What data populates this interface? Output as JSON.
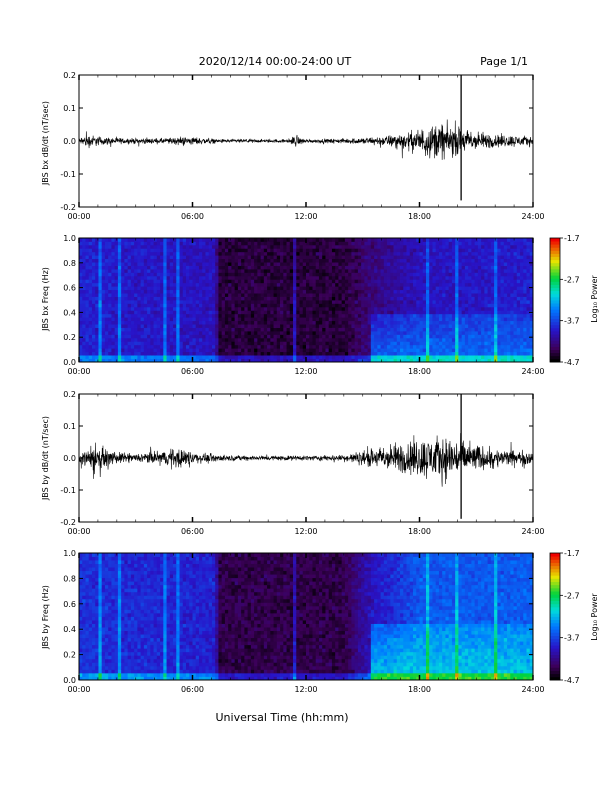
{
  "header": {
    "title": "2020/12/14  00:00-24:00 UT",
    "page": "Page 1/1"
  },
  "xaxis_label": "Universal Time (hh:mm)",
  "chart_data": [
    {
      "type": "line",
      "ylabel": "JBS bx dB/dt (nT/sec)",
      "xlim": [
        0,
        24
      ],
      "ylim": [
        -0.2,
        0.2
      ],
      "xticks": [
        "00:00",
        "06:00",
        "12:00",
        "18:00",
        "24:00"
      ],
      "yticks": [
        "-0.2",
        "-0.1",
        "0.0",
        "0.1",
        "0.2"
      ],
      "envelope": [
        {
          "t": 0,
          "amp": 0.012
        },
        {
          "t": 0.4,
          "amp": 0.03
        },
        {
          "t": 1.2,
          "amp": 0.018
        },
        {
          "t": 2.5,
          "amp": 0.012
        },
        {
          "t": 4.5,
          "amp": 0.012
        },
        {
          "t": 5.5,
          "amp": 0.02
        },
        {
          "t": 7.5,
          "amp": 0.008
        },
        {
          "t": 11,
          "amp": 0.007
        },
        {
          "t": 11.4,
          "amp": 0.025
        },
        {
          "t": 12,
          "amp": 0.008
        },
        {
          "t": 14,
          "amp": 0.01
        },
        {
          "t": 16,
          "amp": 0.02
        },
        {
          "t": 17.5,
          "amp": 0.04
        },
        {
          "t": 19,
          "amp": 0.08
        },
        {
          "t": 20,
          "amp": 0.06
        },
        {
          "t": 21,
          "amp": 0.04
        },
        {
          "t": 22,
          "amp": 0.03
        },
        {
          "t": 24,
          "amp": 0.02
        }
      ],
      "spikes": [
        {
          "t": 20.2,
          "min": -0.18,
          "max": 0.21
        }
      ]
    },
    {
      "type": "heatmap",
      "ylabel": "JBS bx Freq (Hz)",
      "colorbar_label": "Log₁₀ Power",
      "colorbar_ticks": [
        "-1.7",
        "-2.7",
        "-3.7",
        "-4.7"
      ],
      "zlim": [
        -4.7,
        -1.7
      ],
      "xlim": [
        0,
        24
      ],
      "ylim": [
        0,
        1
      ],
      "xticks": [
        "00:00",
        "06:00",
        "12:00",
        "18:00",
        "24:00"
      ],
      "yticks": [
        "0.0",
        "0.2",
        "0.4",
        "0.6",
        "0.8",
        "1.0"
      ],
      "background_level": [
        {
          "t": 0,
          "z": -3.9
        },
        {
          "t": 7.2,
          "z": -4.0
        },
        {
          "t": 7.4,
          "z": -4.5
        },
        {
          "t": 14,
          "z": -4.5
        },
        {
          "t": 15.5,
          "z": -4.25
        },
        {
          "t": 18,
          "z": -4.0
        },
        {
          "t": 24,
          "z": -3.9
        }
      ],
      "enhanced_band": {
        "t_start": 15.5,
        "t_end": 24,
        "f_max": 0.4,
        "z": -3.5
      },
      "vertical_bursts": [
        1.1,
        2.2,
        4.6,
        5.3,
        11.4,
        18.4,
        20.0,
        22.1
      ]
    },
    {
      "type": "line",
      "ylabel": "JBS by dB/dt (nT/sec)",
      "xlim": [
        0,
        24
      ],
      "ylim": [
        -0.2,
        0.2
      ],
      "xticks": [
        "00:00",
        "06:00",
        "12:00",
        "18:00",
        "24:00"
      ],
      "yticks": [
        "-0.2",
        "-0.1",
        "0.0",
        "0.1",
        "0.2"
      ],
      "envelope": [
        {
          "t": 0,
          "amp": 0.025
        },
        {
          "t": 0.8,
          "amp": 0.07
        },
        {
          "t": 1.5,
          "amp": 0.03
        },
        {
          "t": 3,
          "amp": 0.018
        },
        {
          "t": 5.3,
          "amp": 0.045
        },
        {
          "t": 6.5,
          "amp": 0.02
        },
        {
          "t": 8,
          "amp": 0.012
        },
        {
          "t": 12,
          "amp": 0.01
        },
        {
          "t": 14,
          "amp": 0.015
        },
        {
          "t": 16,
          "amp": 0.05
        },
        {
          "t": 18,
          "amp": 0.09
        },
        {
          "t": 19.5,
          "amp": 0.1
        },
        {
          "t": 21,
          "amp": 0.06
        },
        {
          "t": 22,
          "amp": 0.04
        },
        {
          "t": 24,
          "amp": 0.03
        }
      ],
      "spikes": [
        {
          "t": 20.2,
          "min": -0.19,
          "max": 0.2
        }
      ]
    },
    {
      "type": "heatmap",
      "ylabel": "JBS by Freq (Hz)",
      "colorbar_label": "Log₁₀ Power",
      "colorbar_ticks": [
        "-1.7",
        "-2.7",
        "-3.7",
        "-4.7"
      ],
      "zlim": [
        -4.7,
        -1.7
      ],
      "xlim": [
        0,
        24
      ],
      "ylim": [
        0,
        1
      ],
      "xticks": [
        "00:00",
        "06:00",
        "12:00",
        "18:00",
        "24:00"
      ],
      "yticks": [
        "0.0",
        "0.2",
        "0.4",
        "0.6",
        "0.8",
        "1.0"
      ],
      "background_level": [
        {
          "t": 0,
          "z": -3.8
        },
        {
          "t": 7.2,
          "z": -3.9
        },
        {
          "t": 7.4,
          "z": -4.45
        },
        {
          "t": 14,
          "z": -4.45
        },
        {
          "t": 15.5,
          "z": -4.0
        },
        {
          "t": 18,
          "z": -3.6
        },
        {
          "t": 24,
          "z": -3.6
        }
      ],
      "enhanced_band": {
        "t_start": 15.5,
        "t_end": 24,
        "f_max": 0.45,
        "z": -3.1
      },
      "vertical_bursts": [
        1.1,
        2.2,
        4.6,
        5.3,
        11.4,
        18.4,
        20.0,
        22.1
      ]
    }
  ]
}
